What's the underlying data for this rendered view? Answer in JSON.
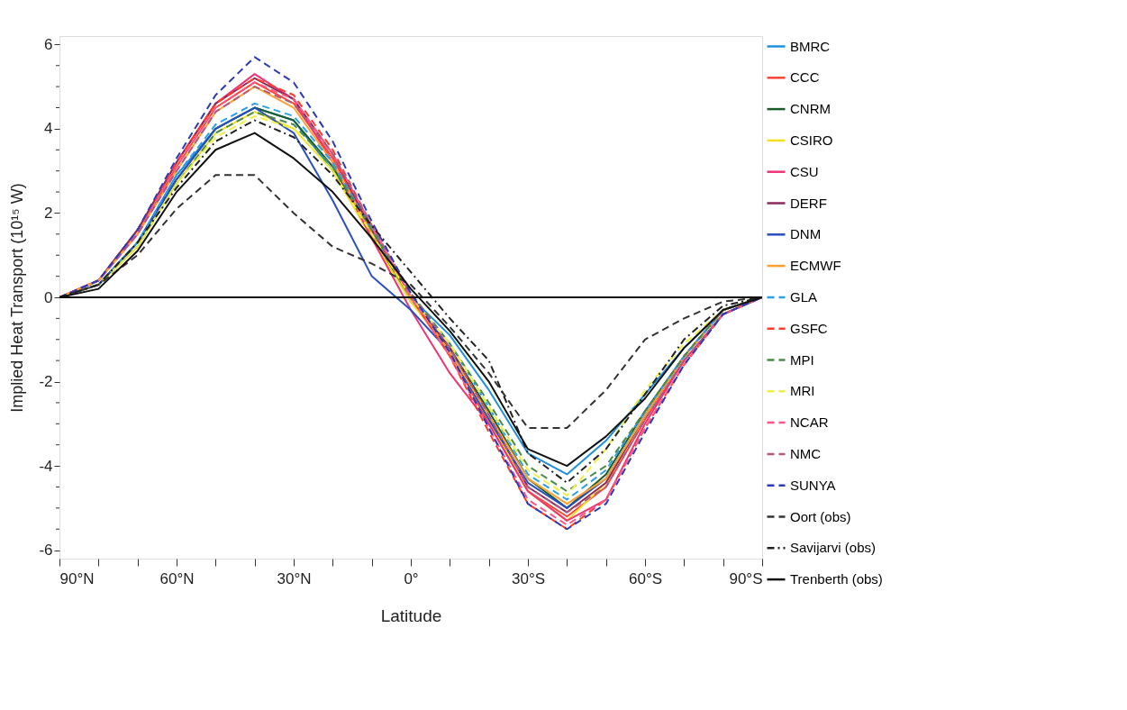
{
  "chart_data": {
    "type": "line",
    "xlabel": "Latitude",
    "ylabel": "Implied Heat Transport (10¹⁵ W)",
    "x": [
      90,
      80,
      70,
      60,
      50,
      40,
      30,
      20,
      10,
      0,
      -10,
      -20,
      -30,
      -40,
      -50,
      -60,
      -70,
      -80,
      -90
    ],
    "xlim": [
      90,
      -90
    ],
    "xticks": [
      {
        "value": 90,
        "label": "90°N"
      },
      {
        "value": 80,
        "label": null
      },
      {
        "value": 70,
        "label": null
      },
      {
        "value": 60,
        "label": "60°N"
      },
      {
        "value": 50,
        "label": null
      },
      {
        "value": 40,
        "label": null
      },
      {
        "value": 30,
        "label": "30°N"
      },
      {
        "value": 20,
        "label": null
      },
      {
        "value": 10,
        "label": null
      },
      {
        "value": 0,
        "label": "0°"
      },
      {
        "value": -10,
        "label": null
      },
      {
        "value": -20,
        "label": null
      },
      {
        "value": -30,
        "label": "30°S"
      },
      {
        "value": -40,
        "label": null
      },
      {
        "value": -50,
        "label": null
      },
      {
        "value": -60,
        "label": "60°S"
      },
      {
        "value": -70,
        "label": null
      },
      {
        "value": -80,
        "label": null
      },
      {
        "value": -90,
        "label": "90°S"
      }
    ],
    "ylim": [
      -6.2,
      6.2
    ],
    "yticks": [
      -6,
      {
        "value": -5.5,
        "label": null
      },
      {
        "value": -5,
        "label": null
      },
      {
        "value": -4.5,
        "label": null
      },
      -4,
      {
        "value": -3.5,
        "label": null
      },
      {
        "value": -3,
        "label": null
      },
      {
        "value": -2.5,
        "label": null
      },
      -2,
      {
        "value": -1.5,
        "label": null
      },
      {
        "value": -1,
        "label": null
      },
      {
        "value": -0.5,
        "label": null
      },
      0,
      {
        "value": 0.5,
        "label": null
      },
      {
        "value": 1,
        "label": null
      },
      {
        "value": 1.5,
        "label": null
      },
      2,
      {
        "value": 2.5,
        "label": null
      },
      {
        "value": 3,
        "label": null
      },
      {
        "value": 3.5,
        "label": null
      },
      4,
      {
        "value": 4.5,
        "label": null
      },
      {
        "value": 5,
        "label": null
      },
      {
        "value": 5.5,
        "label": null
      },
      6
    ],
    "grid": false,
    "legend": "right",
    "marker": "none",
    "ref_lines": [
      {
        "axis": "y",
        "value": 0,
        "color": "#111111",
        "line_style": "solid"
      }
    ],
    "series": [
      {
        "name": "BMRC",
        "color": "#1f8fe0",
        "line_style": "solid",
        "values": [
          0,
          0.3,
          1.3,
          2.9,
          4.0,
          4.5,
          4.2,
          3.0,
          1.5,
          0.0,
          -0.9,
          -2.2,
          -3.7,
          -4.2,
          -3.4,
          -2.3,
          -1.2,
          -0.3,
          0
        ]
      },
      {
        "name": "CCC",
        "color": "#ff4433",
        "line_style": "solid",
        "values": [
          0,
          0.4,
          1.5,
          3.1,
          4.5,
          5.1,
          4.6,
          3.3,
          1.6,
          0.0,
          -1.3,
          -3.0,
          -4.6,
          -5.2,
          -4.5,
          -2.9,
          -1.5,
          -0.4,
          0
        ]
      },
      {
        "name": "CNRM",
        "color": "#1a5c2a",
        "line_style": "solid",
        "values": [
          0,
          0.3,
          1.3,
          2.8,
          4.0,
          4.5,
          4.2,
          3.1,
          1.5,
          -0.1,
          -1.2,
          -2.7,
          -4.3,
          -5.0,
          -4.2,
          -2.7,
          -1.4,
          -0.3,
          0
        ]
      },
      {
        "name": "CSIRO",
        "color": "#f0e020",
        "line_style": "solid",
        "values": [
          0,
          0.3,
          1.2,
          2.7,
          3.9,
          4.4,
          4.0,
          3.0,
          1.4,
          -0.1,
          -1.3,
          -2.9,
          -4.6,
          -5.3,
          -4.4,
          -2.8,
          -1.4,
          -0.3,
          0
        ]
      },
      {
        "name": "CSU",
        "color": "#ee3377",
        "line_style": "solid",
        "values": [
          0,
          0.4,
          1.6,
          3.2,
          4.6,
          5.3,
          4.7,
          3.2,
          1.4,
          -0.3,
          -1.8,
          -3.0,
          -4.6,
          -5.3,
          -4.8,
          -3.0,
          -1.5,
          -0.4,
          0
        ]
      },
      {
        "name": "DERF",
        "color": "#8b2a5a",
        "line_style": "solid",
        "values": [
          0,
          0.4,
          1.6,
          3.2,
          4.6,
          5.2,
          4.7,
          3.4,
          1.6,
          0.0,
          -1.2,
          -2.8,
          -4.5,
          -5.1,
          -4.4,
          -2.8,
          -1.4,
          -0.3,
          0
        ]
      },
      {
        "name": "DNM",
        "color": "#2a4fc0",
        "line_style": "solid",
        "values": [
          0,
          0.3,
          1.3,
          2.8,
          4.0,
          4.5,
          3.9,
          2.3,
          0.5,
          -0.3,
          -1.3,
          -2.9,
          -4.4,
          -5.0,
          -4.3,
          -2.8,
          -1.4,
          -0.3,
          0
        ]
      },
      {
        "name": "ECMWF",
        "color": "#ffa030",
        "line_style": "solid",
        "values": [
          0,
          0.4,
          1.5,
          3.0,
          4.4,
          5.0,
          4.5,
          3.2,
          1.5,
          0.0,
          -1.3,
          -2.8,
          -4.3,
          -4.9,
          -4.3,
          -2.8,
          -1.4,
          -0.3,
          0
        ]
      },
      {
        "name": "GLA",
        "color": "#2a9fe8",
        "line_style": "dashed",
        "values": [
          0,
          0.3,
          1.3,
          2.9,
          4.1,
          4.6,
          4.3,
          3.2,
          1.6,
          0.0,
          -1.1,
          -2.6,
          -4.2,
          -4.8,
          -4.1,
          -2.7,
          -1.4,
          -0.3,
          0
        ]
      },
      {
        "name": "GSFC",
        "color": "#ff3a2a",
        "line_style": "dashed",
        "values": [
          0,
          0.4,
          1.6,
          3.2,
          4.6,
          5.2,
          4.8,
          3.5,
          1.7,
          0.0,
          -1.4,
          -3.2,
          -4.9,
          -5.5,
          -4.8,
          -3.1,
          -1.6,
          -0.4,
          0
        ]
      },
      {
        "name": "MPI",
        "color": "#4a8a4a",
        "line_style": "dashed",
        "values": [
          0,
          0.3,
          1.2,
          2.7,
          3.9,
          4.4,
          4.1,
          3.1,
          1.6,
          0.1,
          -1.1,
          -2.5,
          -4.0,
          -4.6,
          -4.0,
          -2.7,
          -1.4,
          -0.3,
          0
        ]
      },
      {
        "name": "MRI",
        "color": "#f0f040",
        "line_style": "dashed",
        "values": [
          0,
          0.3,
          1.2,
          2.7,
          3.8,
          4.3,
          4.0,
          3.0,
          1.5,
          0.0,
          -1.1,
          -2.6,
          -4.1,
          -4.7,
          -3.6,
          -2.2,
          -1.1,
          -0.3,
          0
        ]
      },
      {
        "name": "NCAR",
        "color": "#ff5588",
        "line_style": "dashed",
        "values": [
          0,
          0.4,
          1.5,
          3.1,
          4.5,
          5.1,
          4.7,
          3.4,
          1.7,
          0.0,
          -1.4,
          -3.1,
          -4.8,
          -5.4,
          -4.8,
          -3.1,
          -1.6,
          -0.4,
          0
        ]
      },
      {
        "name": "NMC",
        "color": "#b05a80",
        "line_style": "dashed",
        "values": [
          0,
          0.4,
          1.5,
          3.0,
          4.4,
          5.0,
          4.6,
          3.4,
          1.7,
          0.1,
          -1.2,
          -2.8,
          -4.5,
          -5.1,
          -4.5,
          -2.9,
          -1.5,
          -0.4,
          0
        ]
      },
      {
        "name": "SUNYA",
        "color": "#2a3ab8",
        "line_style": "dashed",
        "values": [
          0,
          0.4,
          1.6,
          3.3,
          4.8,
          5.7,
          5.1,
          3.7,
          1.8,
          0.1,
          -1.3,
          -3.1,
          -4.9,
          -5.5,
          -4.9,
          -3.2,
          -1.6,
          -0.4,
          0
        ]
      },
      {
        "name": "Oort (obs)",
        "color": "#333333",
        "line_style": "dashed",
        "values": [
          0,
          0.3,
          1.0,
          2.1,
          2.9,
          2.9,
          2.0,
          1.2,
          0.8,
          0.3,
          -0.7,
          -1.8,
          -3.1,
          -3.1,
          -2.2,
          -1.0,
          -0.5,
          -0.1,
          0
        ]
      },
      {
        "name": "Savijarvi (obs)",
        "color": "#222222",
        "line_style": "dashdot",
        "values": [
          0,
          0.3,
          1.3,
          2.6,
          3.7,
          4.2,
          3.8,
          2.9,
          1.7,
          0.6,
          -0.5,
          -1.5,
          -3.7,
          -4.4,
          -3.6,
          -2.3,
          -1.0,
          -0.2,
          0
        ]
      },
      {
        "name": "Trenberth (obs)",
        "color": "#111111",
        "line_style": "solid",
        "values": [
          0,
          0.2,
          1.1,
          2.5,
          3.5,
          3.9,
          3.3,
          2.5,
          1.4,
          0.2,
          -0.8,
          -2.0,
          -3.6,
          -4.0,
          -3.3,
          -2.4,
          -1.2,
          -0.3,
          0
        ]
      }
    ]
  }
}
